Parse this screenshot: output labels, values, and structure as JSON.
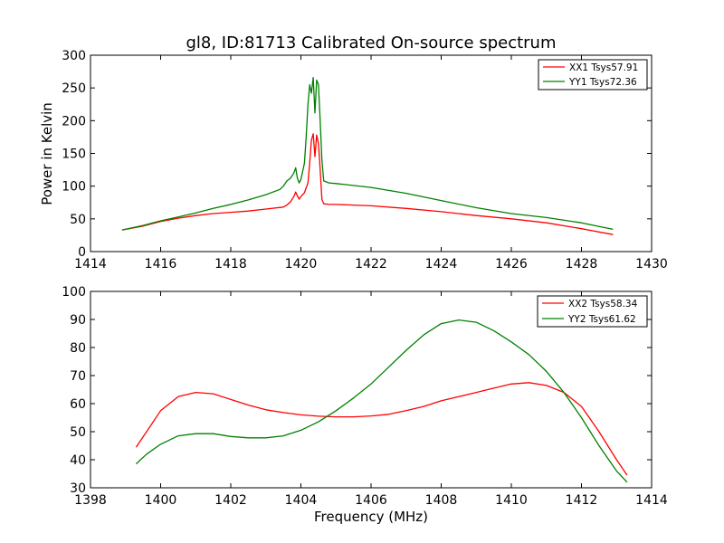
{
  "chart_data": [
    {
      "type": "line",
      "title": "gl8, ID:81713 Calibrated On-source spectrum",
      "xlabel": "",
      "ylabel": "Power in Kelvin",
      "xlim": [
        1414,
        1430
      ],
      "ylim": [
        0,
        300
      ],
      "xticks": [
        "1414",
        "1416",
        "1418",
        "1420",
        "1422",
        "1424",
        "1426",
        "1428",
        "1430"
      ],
      "yticks": [
        "0",
        "50",
        "100",
        "150",
        "200",
        "250",
        "300"
      ],
      "grid": false,
      "legend_position": "top-right",
      "series": [
        {
          "name": "XX1 Tsys57.91",
          "color": "#ff0000",
          "points": [
            [
              1414.9,
              33
            ],
            [
              1415.5,
              39
            ],
            [
              1416,
              46
            ],
            [
              1416.5,
              51
            ],
            [
              1417,
              55
            ],
            [
              1417.5,
              58
            ],
            [
              1418,
              60
            ],
            [
              1418.5,
              62
            ],
            [
              1419,
              65
            ],
            [
              1419.5,
              68
            ],
            [
              1419.6,
              71
            ],
            [
              1419.7,
              76
            ],
            [
              1419.8,
              84
            ],
            [
              1419.85,
              91
            ],
            [
              1419.9,
              85
            ],
            [
              1419.95,
              80
            ],
            [
              1420.0,
              84
            ],
            [
              1420.1,
              90
            ],
            [
              1420.2,
              105
            ],
            [
              1420.25,
              135
            ],
            [
              1420.3,
              170
            ],
            [
              1420.35,
              180
            ],
            [
              1420.4,
              145
            ],
            [
              1420.45,
              178
            ],
            [
              1420.5,
              165
            ],
            [
              1420.55,
              125
            ],
            [
              1420.6,
              80
            ],
            [
              1420.65,
              73
            ],
            [
              1420.8,
              72
            ],
            [
              1421,
              72
            ],
            [
              1422,
              70
            ],
            [
              1423,
              66
            ],
            [
              1424,
              61
            ],
            [
              1425,
              55
            ],
            [
              1426,
              50
            ],
            [
              1427,
              44
            ],
            [
              1428,
              35
            ],
            [
              1428.9,
              26
            ]
          ]
        },
        {
          "name": "YY1 Tsys72.36",
          "color": "#008000",
          "points": [
            [
              1414.9,
              33
            ],
            [
              1415.5,
              40
            ],
            [
              1416,
              47
            ],
            [
              1416.5,
              53
            ],
            [
              1417,
              59
            ],
            [
              1417.5,
              66
            ],
            [
              1418,
              72
            ],
            [
              1418.5,
              79
            ],
            [
              1419,
              87
            ],
            [
              1419.4,
              95
            ],
            [
              1419.5,
              100
            ],
            [
              1419.6,
              108
            ],
            [
              1419.7,
              112
            ],
            [
              1419.8,
              120
            ],
            [
              1419.85,
              128
            ],
            [
              1419.9,
              112
            ],
            [
              1419.95,
              105
            ],
            [
              1420.0,
              110
            ],
            [
              1420.1,
              135
            ],
            [
              1420.15,
              175
            ],
            [
              1420.2,
              225
            ],
            [
              1420.25,
              255
            ],
            [
              1420.3,
              242
            ],
            [
              1420.35,
              266
            ],
            [
              1420.4,
              212
            ],
            [
              1420.45,
              262
            ],
            [
              1420.5,
              255
            ],
            [
              1420.55,
              200
            ],
            [
              1420.6,
              140
            ],
            [
              1420.65,
              108
            ],
            [
              1420.8,
              105
            ],
            [
              1421,
              104
            ],
            [
              1422,
              98
            ],
            [
              1423,
              89
            ],
            [
              1424,
              78
            ],
            [
              1425,
              67
            ],
            [
              1426,
              58
            ],
            [
              1427,
              52
            ],
            [
              1428,
              44
            ],
            [
              1428.9,
              34
            ]
          ]
        }
      ]
    },
    {
      "type": "line",
      "title": "",
      "xlabel": "Frequency (MHz)",
      "ylabel": "",
      "xlim": [
        1398,
        1414
      ],
      "ylim": [
        30,
        100
      ],
      "xticks": [
        "1398",
        "1400",
        "1402",
        "1404",
        "1406",
        "1408",
        "1410",
        "1412",
        "1414"
      ],
      "yticks": [
        "30",
        "40",
        "50",
        "60",
        "70",
        "80",
        "90",
        "100"
      ],
      "grid": false,
      "legend_position": "top-right",
      "series": [
        {
          "name": "XX2 Tsys58.34",
          "color": "#ff0000",
          "points": [
            [
              1399.3,
              44.5
            ],
            [
              1399.6,
              50
            ],
            [
              1400,
              57.5
            ],
            [
              1400.5,
              62.5
            ],
            [
              1401,
              64
            ],
            [
              1401.5,
              63.5
            ],
            [
              1402,
              61.5
            ],
            [
              1402.5,
              59.5
            ],
            [
              1403,
              57.8
            ],
            [
              1403.5,
              56.8
            ],
            [
              1404,
              56
            ],
            [
              1404.5,
              55.5
            ],
            [
              1405,
              55.3
            ],
            [
              1405.5,
              55.3
            ],
            [
              1406,
              55.6
            ],
            [
              1406.5,
              56.2
            ],
            [
              1407,
              57.5
            ],
            [
              1407.5,
              59
            ],
            [
              1408,
              61
            ],
            [
              1408.5,
              62.5
            ],
            [
              1409,
              64
            ],
            [
              1409.5,
              65.5
            ],
            [
              1410,
              67
            ],
            [
              1410.5,
              67.5
            ],
            [
              1411,
              66.5
            ],
            [
              1411.5,
              64
            ],
            [
              1412,
              59
            ],
            [
              1412.5,
              50
            ],
            [
              1413,
              40
            ],
            [
              1413.3,
              34.5
            ]
          ]
        },
        {
          "name": "YY2 Tsys61.62",
          "color": "#008000",
          "points": [
            [
              1399.3,
              38.5
            ],
            [
              1399.6,
              42
            ],
            [
              1400,
              45.5
            ],
            [
              1400.5,
              48.5
            ],
            [
              1401,
              49.3
            ],
            [
              1401.5,
              49.3
            ],
            [
              1402,
              48.3
            ],
            [
              1402.5,
              47.8
            ],
            [
              1403,
              47.8
            ],
            [
              1403.5,
              48.5
            ],
            [
              1404,
              50.5
            ],
            [
              1404.5,
              53.5
            ],
            [
              1405,
              57.5
            ],
            [
              1405.5,
              62
            ],
            [
              1406,
              67
            ],
            [
              1406.5,
              73
            ],
            [
              1407,
              79
            ],
            [
              1407.5,
              84.5
            ],
            [
              1408,
              88.5
            ],
            [
              1408.5,
              89.8
            ],
            [
              1409,
              89
            ],
            [
              1409.5,
              86
            ],
            [
              1410,
              82
            ],
            [
              1410.5,
              77.5
            ],
            [
              1411,
              71.5
            ],
            [
              1411.5,
              64
            ],
            [
              1412,
              55
            ],
            [
              1412.5,
              45
            ],
            [
              1413,
              36
            ],
            [
              1413.3,
              32
            ]
          ]
        }
      ]
    }
  ]
}
